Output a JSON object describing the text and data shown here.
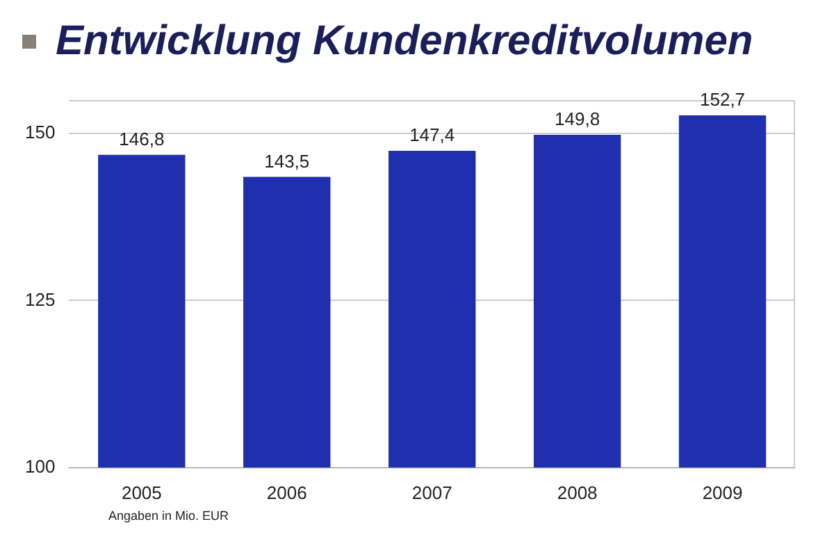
{
  "chart_data": {
    "type": "bar",
    "title": "Entwicklung Kundenkreditvolumen",
    "categories": [
      "2005",
      "2006",
      "2007",
      "2008",
      "2009"
    ],
    "values": [
      146.8,
      143.5,
      147.4,
      149.8,
      152.7
    ],
    "value_labels": [
      "146,8",
      "143,5",
      "147,4",
      "149,8",
      "152,7"
    ],
    "color": "#1f2fae",
    "ylim": [
      100,
      155
    ],
    "yticks": [
      100,
      125,
      150
    ],
    "grid": "y",
    "annotations": [
      "Angaben in Mio. EUR"
    ]
  }
}
